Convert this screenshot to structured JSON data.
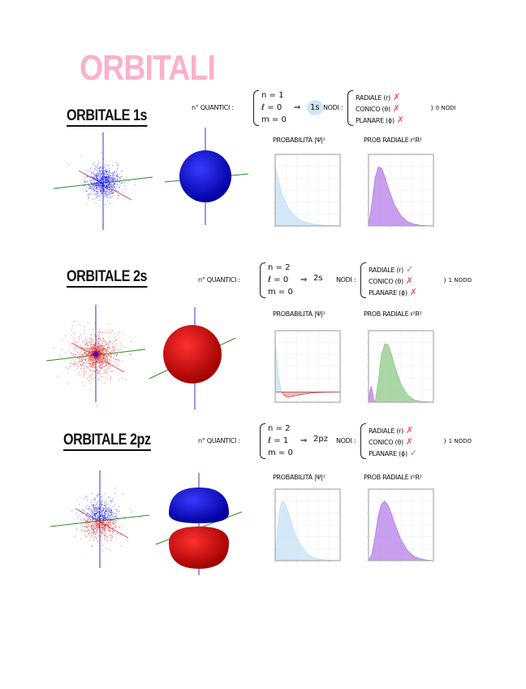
{
  "title": "ORBITALI",
  "sections": [
    {
      "heading": "ORBITALE 1s",
      "quantum_label": "n° QUANTICI :",
      "n": "n = 1",
      "l": "ℓ = 0",
      "m": "m = 0",
      "arrow": "⇒",
      "result": "1s",
      "nodes_label": "NODI :",
      "nodes": [
        {
          "label": "RADIALE (r)",
          "status": "cross"
        },
        {
          "label": "CONICO (θ)",
          "status": "cross"
        },
        {
          "label": "PLANARE (ϕ)",
          "status": "cross"
        }
      ],
      "nodes_summary": "} 0 NODI",
      "plot_titles": [
        "PROBABILITÀ |Ψ|²",
        "PROB RADIALE r²R²"
      ]
    },
    {
      "heading": "ORBITALE 2s",
      "quantum_label": "n° QUANTICI :",
      "n": "n = 2",
      "l": "ℓ = 0",
      "m": "m = 0",
      "arrow": "⇒",
      "result": "2s",
      "nodes_label": "NODI :",
      "nodes": [
        {
          "label": "RADIALE (r)",
          "status": "check"
        },
        {
          "label": "CONICO (θ)",
          "status": "cross"
        },
        {
          "label": "PLANARE (ϕ)",
          "status": "cross"
        }
      ],
      "nodes_summary": "} 1 NODO",
      "plot_titles": [
        "PROBABILITÀ |Ψ|²",
        "PROB RADIALE r²R²"
      ]
    },
    {
      "heading": "ORBITALE 2pz",
      "quantum_label": "n° QUANTICI :",
      "n": "n = 2",
      "l": "ℓ = 1",
      "m": "m = 0",
      "arrow": "⇒",
      "result": "2pz",
      "nodes_label": "NODI :",
      "nodes": [
        {
          "label": "RADIALE (r)",
          "status": "cross"
        },
        {
          "label": "CONICO (θ)",
          "status": "cross"
        },
        {
          "label": "PLANARE (ϕ)",
          "status": "check"
        }
      ],
      "nodes_summary": "} 1 NODO",
      "plot_titles": [
        "PROBABILITÀ |Ψ|²",
        "PROB RADIALE r²R²"
      ]
    }
  ],
  "colors": {
    "title": "#fbb1cb",
    "cross": "#f0545a",
    "check": "#4cae4c",
    "blue": "#1a1aee",
    "red": "#e01010"
  },
  "chart_data": [
    {
      "type": "area",
      "title": "PROBABILITÀ |Ψ|² (1s)",
      "xlim": [
        0,
        3
      ],
      "ylim": [
        0,
        1.2
      ],
      "x": [
        0,
        0.3,
        0.6,
        0.9,
        1.2,
        1.5,
        1.8,
        2.1,
        2.4,
        2.7,
        3.0
      ],
      "series": [
        {
          "name": "psi2",
          "color": "#c6e0f5",
          "values": [
            1,
            0.55,
            0.3,
            0.17,
            0.09,
            0.05,
            0.03,
            0.015,
            0.008,
            0.005,
            0.002
          ]
        }
      ]
    },
    {
      "type": "area",
      "title": "PROB RADIALE r²R² (1s)",
      "xlim": [
        0,
        3
      ],
      "ylim": [
        0,
        1.2
      ],
      "x": [
        0,
        0.15,
        0.3,
        0.45,
        0.6,
        0.75,
        0.9,
        1.2,
        1.5,
        1.8,
        2.1,
        2.4,
        2.7,
        3.0
      ],
      "series": [
        {
          "name": "r2R2",
          "color": "#b57ee8",
          "values": [
            0,
            0.36,
            0.8,
            0.99,
            0.97,
            0.83,
            0.65,
            0.35,
            0.17,
            0.07,
            0.03,
            0.011,
            0.004,
            0.001
          ]
        }
      ]
    },
    {
      "type": "area",
      "title": "PROBABILITÀ |Ψ|² (2s)",
      "xlim": [
        0,
        10
      ],
      "ylim": [
        -0.2,
        1.2
      ],
      "x": [
        0,
        0.25,
        0.5,
        0.75,
        1,
        1.5,
        2,
        2.5,
        3,
        4,
        5,
        6,
        7,
        8,
        10
      ],
      "series": [
        {
          "name": "psi2",
          "color": "#c6e0f5",
          "negcolor": "#dd8a8a",
          "values": [
            1,
            0.62,
            0.34,
            0.14,
            0,
            -0.08,
            -0.1,
            -0.09,
            -0.075,
            -0.05,
            -0.03,
            -0.015,
            -0.008,
            -0.004,
            0
          ]
        }
      ]
    },
    {
      "type": "area",
      "title": "PROB RADIALE r²R² (2s)",
      "xlim": [
        0,
        10
      ],
      "ylim": [
        0,
        1.2
      ],
      "x": [
        0,
        0.2,
        0.4,
        0.6,
        0.8,
        1.0,
        1.5,
        2,
        2.5,
        3,
        3.5,
        4,
        5,
        6,
        7,
        8,
        10
      ],
      "series": [
        {
          "name": "inner",
          "color": "#b57ee8",
          "values": [
            0,
            0.18,
            0.27,
            0.18,
            0.04,
            0,
            null,
            null,
            null,
            null,
            null,
            null,
            null,
            null,
            null,
            null,
            null
          ]
        },
        {
          "name": "outer",
          "color": "#8fca8a",
          "values": [
            null,
            null,
            null,
            null,
            null,
            0,
            0.35,
            0.8,
            0.98,
            0.97,
            0.82,
            0.62,
            0.3,
            0.12,
            0.04,
            0.015,
            0
          ]
        }
      ]
    },
    {
      "type": "area",
      "title": "PROBABILITÀ |Ψ|² (2pz)",
      "xlim": [
        0,
        10
      ],
      "ylim": [
        0,
        1.2
      ],
      "x": [
        0,
        0.3,
        0.6,
        0.9,
        1.2,
        1.5,
        2,
        2.5,
        3,
        4,
        5,
        6,
        7,
        8,
        10
      ],
      "series": [
        {
          "name": "psi2",
          "color": "#c6e0f5",
          "values": [
            0,
            0.45,
            0.78,
            0.95,
            1.0,
            0.96,
            0.82,
            0.64,
            0.47,
            0.24,
            0.11,
            0.05,
            0.02,
            0.01,
            0
          ]
        }
      ]
    },
    {
      "type": "area",
      "title": "PROB RADIALE r²R² (2pz)",
      "xlim": [
        0,
        10
      ],
      "ylim": [
        0,
        1.2
      ],
      "x": [
        0,
        0.5,
        1,
        1.5,
        2,
        2.5,
        3,
        3.5,
        4,
        5,
        6,
        7,
        8,
        9,
        10
      ],
      "series": [
        {
          "name": "r2R2",
          "color": "#b57ee8",
          "values": [
            0,
            0.1,
            0.4,
            0.75,
            0.95,
            1.0,
            0.93,
            0.8,
            0.63,
            0.35,
            0.17,
            0.07,
            0.03,
            0.01,
            0
          ]
        }
      ]
    }
  ]
}
